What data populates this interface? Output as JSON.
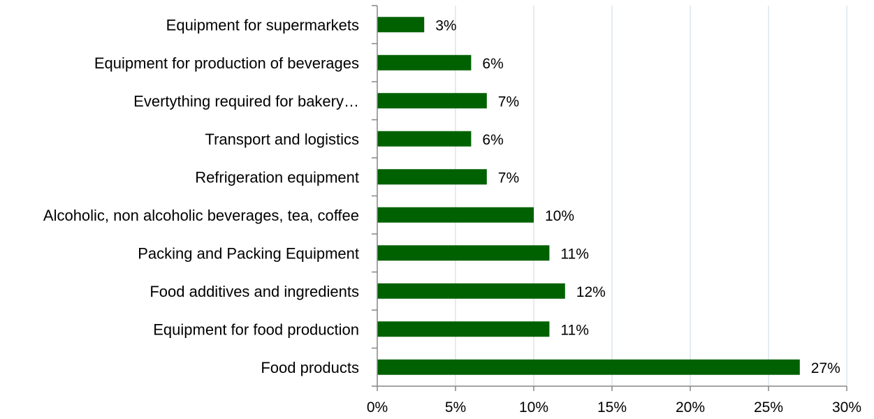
{
  "chart_data": {
    "type": "bar",
    "orientation": "horizontal",
    "title": "",
    "xlabel": "",
    "ylabel": "",
    "categories": [
      "Equipment for supermarkets",
      "Equipment for production of beverages",
      "Evertything required for bakery…",
      "Transport and logistics",
      "Refrigeration equipment",
      "Alcoholic, non alcoholic beverages, tea, coffee",
      "Packing and Packing Equipment",
      "Food additives and ingredients",
      "Equipment for food production",
      "Food products"
    ],
    "values": [
      3,
      6,
      7,
      6,
      7,
      10,
      11,
      12,
      11,
      27
    ],
    "value_labels": [
      "3%",
      "6%",
      "7%",
      "6%",
      "7%",
      "10%",
      "11%",
      "12%",
      "11%",
      "27%"
    ],
    "xlim": [
      0,
      30
    ],
    "x_ticks": [
      0,
      5,
      10,
      15,
      20,
      25,
      30
    ],
    "x_tick_labels": [
      "0%",
      "5%",
      "10%",
      "15%",
      "20%",
      "25%",
      "30%"
    ],
    "grid": "vertical",
    "legend": "none",
    "colors": {
      "bar": "#006100",
      "grid": "#c8d7e6",
      "axis": "#868686"
    }
  }
}
